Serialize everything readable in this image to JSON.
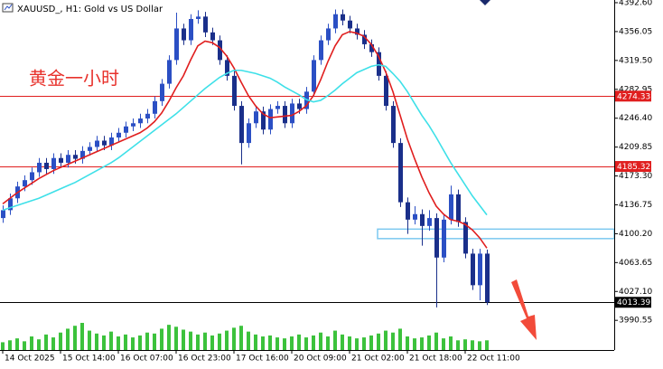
{
  "chart_data": {
    "type": "candlestick",
    "title": "XAUUSD_, H1:  Gold vs US Dollar",
    "annotation": "黄金一小时",
    "ylim": [
      3953,
      4396
    ],
    "yticks": [
      {
        "value": 4392.6,
        "label": "4392.60"
      },
      4356.05,
      {
        "value": 4319.5,
        "label": "4319.50"
      },
      4282.95,
      {
        "value": 4246.4,
        "label": "4246.40"
      },
      4209.85,
      {
        "value": 4173.3,
        "label": "4173.30"
      },
      4136.75,
      {
        "value": 4100.2,
        "label": "4100.20"
      },
      4063.65,
      {
        "value": 4027.1,
        "label": "4027.10"
      },
      3990.55
    ],
    "categories": [
      "14 Oct 2025",
      null,
      null,
      null,
      null,
      null,
      null,
      null,
      "15 Oct 14:00",
      null,
      null,
      null,
      null,
      null,
      null,
      null,
      "16 Oct 07:00",
      null,
      null,
      null,
      null,
      null,
      null,
      null,
      "16 Oct 23:00",
      null,
      null,
      null,
      null,
      null,
      null,
      null,
      "17 Oct 16:00",
      null,
      null,
      null,
      null,
      null,
      null,
      null,
      "20 Oct 09:00",
      null,
      null,
      null,
      null,
      null,
      null,
      null,
      "21 Oct 02:00",
      null,
      null,
      null,
      null,
      null,
      null,
      null,
      "21 Oct 18:00",
      null,
      null,
      null,
      null,
      null,
      null,
      null,
      "22 Oct 11:00",
      null,
      null,
      null
    ],
    "up_color": "#2b4fc4",
    "down_color": "#1a2f8a",
    "opens": [
      4120,
      4130,
      4145,
      4160,
      4168,
      4178,
      4190,
      4182,
      4196,
      4190,
      4200,
      4195,
      4205,
      4210,
      4218,
      4212,
      4222,
      4228,
      4236,
      4240,
      4246,
      4252,
      4268,
      4290,
      4320,
      4360,
      4345,
      4372,
      4375,
      4355,
      4345,
      4320,
      4300,
      4262,
      4215,
      4240,
      4255,
      4232,
      4258,
      4262,
      4240,
      4265,
      4258,
      4280,
      4320,
      4345,
      4360,
      4378,
      4370,
      4360,
      4352,
      4340,
      4330,
      4300,
      4262,
      4215,
      4140,
      4118,
      4125,
      4110,
      4120,
      4070,
      4118,
      4150,
      4115,
      4075,
      4035,
      4075
    ],
    "highs": [
      4136,
      4151,
      4166,
      4174,
      4184,
      4196,
      4196,
      4202,
      4202,
      4206,
      4206,
      4211,
      4216,
      4224,
      4224,
      4228,
      4234,
      4242,
      4246,
      4252,
      4258,
      4274,
      4296,
      4326,
      4380,
      4366,
      4378,
      4383,
      4381,
      4361,
      4351,
      4326,
      4306,
      4268,
      4246,
      4261,
      4261,
      4264,
      4268,
      4268,
      4271,
      4271,
      4286,
      4326,
      4351,
      4366,
      4384,
      4384,
      4376,
      4366,
      4358,
      4346,
      4336,
      4306,
      4268,
      4221,
      4146,
      4135,
      4131,
      4130,
      4126,
      4124,
      4161,
      4156,
      4121,
      4081,
      4081,
      4080
    ],
    "lows": [
      4114,
      4124,
      4139,
      4154,
      4162,
      4172,
      4176,
      4176,
      4184,
      4184,
      4189,
      4189,
      4199,
      4204,
      4206,
      4206,
      4216,
      4222,
      4230,
      4234,
      4240,
      4246,
      4262,
      4284,
      4314,
      4339,
      4339,
      4366,
      4349,
      4339,
      4314,
      4294,
      4256,
      4188,
      4209,
      4234,
      4226,
      4226,
      4252,
      4234,
      4234,
      4252,
      4252,
      4274,
      4314,
      4339,
      4354,
      4364,
      4354,
      4346,
      4334,
      4324,
      4294,
      4256,
      4209,
      4134,
      4100,
      4112,
      4085,
      4104,
      4007,
      4064,
      4112,
      4109,
      4069,
      4029,
      4016,
      4010
    ],
    "closes": [
      4130,
      4145,
      4160,
      4168,
      4178,
      4190,
      4182,
      4196,
      4190,
      4200,
      4195,
      4205,
      4210,
      4218,
      4212,
      4222,
      4228,
      4236,
      4240,
      4246,
      4252,
      4268,
      4290,
      4320,
      4360,
      4345,
      4372,
      4375,
      4355,
      4345,
      4320,
      4300,
      4262,
      4215,
      4240,
      4255,
      4232,
      4258,
      4262,
      4240,
      4265,
      4258,
      4280,
      4320,
      4345,
      4360,
      4378,
      4370,
      4360,
      4352,
      4340,
      4330,
      4300,
      4262,
      4215,
      4140,
      4118,
      4125,
      4110,
      4120,
      4070,
      4118,
      4150,
      4115,
      4075,
      4035,
      4075,
      4013.39
    ],
    "volume": [
      8,
      10,
      12,
      9,
      14,
      11,
      16,
      13,
      18,
      22,
      25,
      28,
      20,
      17,
      15,
      19,
      14,
      16,
      13,
      15,
      18,
      17,
      22,
      26,
      24,
      21,
      19,
      16,
      18,
      15,
      17,
      20,
      23,
      25,
      19,
      16,
      14,
      15,
      13,
      12,
      14,
      16,
      13,
      15,
      18,
      14,
      20,
      16,
      14,
      12,
      13,
      15,
      17,
      20,
      18,
      22,
      14,
      12,
      13,
      15,
      18,
      12,
      14,
      10,
      11,
      10,
      9,
      10
    ],
    "volume_color": "#3cc23c",
    "lines": [
      {
        "color": "#e01e1e",
        "values": [
          4138,
          4145,
          4152,
          4158,
          4164,
          4170,
          4175,
          4180,
          4184,
          4188,
          4192,
          4196,
          4200,
          4204,
          4208,
          4212,
          4216,
          4220,
          4224,
          4228,
          4234,
          4242,
          4253,
          4268,
          4285,
          4300,
          4320,
          4338,
          4344,
          4342,
          4336,
          4325,
          4310,
          4292,
          4275,
          4262,
          4252,
          4247,
          4248,
          4249,
          4250,
          4255,
          4262,
          4275,
          4295,
          4318,
          4338,
          4352,
          4356,
          4354,
          4350,
          4340,
          4325,
          4305,
          4280,
          4250,
          4220,
          4195,
          4172,
          4152,
          4135,
          4125,
          4118,
          4116,
          4112,
          4105,
          4095,
          4082
        ]
      },
      {
        "color": "#3ee0e8",
        "values": [
          4130,
          4133,
          4136,
          4139,
          4142,
          4145,
          4149,
          4153,
          4157,
          4161,
          4165,
          4170,
          4175,
          4180,
          4185,
          4190,
          4196,
          4203,
          4210,
          4217,
          4224,
          4231,
          4238,
          4245,
          4252,
          4260,
          4268,
          4276,
          4284,
          4291,
          4298,
          4303,
          4307,
          4307,
          4305,
          4303,
          4300,
          4297,
          4292,
          4286,
          4281,
          4276,
          4270,
          4267,
          4269,
          4275,
          4282,
          4290,
          4297,
          4304,
          4308,
          4312,
          4314,
          4312,
          4303,
          4293,
          4280,
          4265,
          4250,
          4237,
          4222,
          4206,
          4190,
          4176,
          4162,
          4148,
          4136,
          4124
        ]
      }
    ],
    "levels": [
      {
        "value": 4274.33,
        "color": "#e01e1e"
      },
      {
        "value": 4185.32,
        "color": "#e01e1e"
      },
      {
        "value": 4013.39,
        "color": "#000000"
      }
    ],
    "zone": {
      "low": 4094,
      "high": 4106,
      "color": "#7cc8f0"
    }
  }
}
